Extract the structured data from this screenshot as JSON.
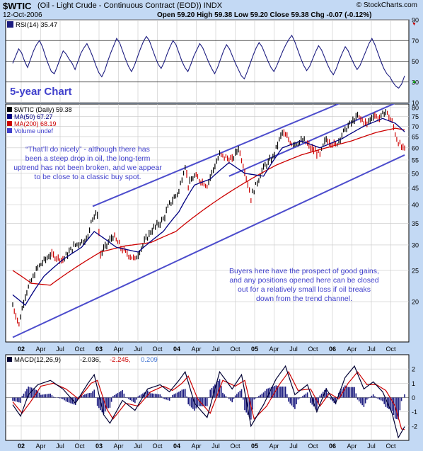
{
  "header": {
    "symbol": "$WTIC",
    "description": "(Oil - Light Crude - Continuous Contract (EOD)) INDX",
    "date": "12-Oct-2006",
    "ohlc": "Open 59.20  High 59.38  Low 59.20  Close 59.38  Chg -0.07 (-0.12%)",
    "source": "© StockCharts.com"
  },
  "colors": {
    "background": "#c3d9f4",
    "panel": "#ffffff",
    "price": "#000000",
    "up_bar": "#000000",
    "down_bar": "#cc0000",
    "ma50": "#000080",
    "ma200": "#cc0000",
    "channel": "#4c4ccc",
    "rsi": "#1c1c80",
    "macd_line": "#000033",
    "macd_signal": "#cc0000",
    "macd_hist": "#1c1c80",
    "annotation": "#4040cc"
  },
  "chart_data": [
    {
      "type": "line",
      "panel": "rsi",
      "legend": "RSI(14) 35.47",
      "ylim": [
        10,
        90
      ],
      "yticks": [
        10,
        30,
        50,
        70,
        90
      ],
      "reference_lines": [
        30,
        50,
        70
      ],
      "grid": true,
      "values": [
        48,
        55,
        62,
        58,
        50,
        44,
        52,
        60,
        66,
        70,
        64,
        55,
        47,
        40,
        38,
        45,
        53,
        60,
        57,
        52,
        48,
        42,
        50,
        58,
        63,
        67,
        61,
        54,
        46,
        39,
        35,
        41,
        50,
        58,
        65,
        72,
        68,
        60,
        52,
        45,
        40,
        46,
        54,
        62,
        69,
        74,
        70,
        62,
        54,
        47,
        43,
        49,
        57,
        64,
        70,
        66,
        58,
        50,
        44,
        40,
        47,
        55,
        61,
        67,
        63,
        56,
        49,
        43,
        38,
        44,
        52,
        60,
        66,
        62,
        55,
        48,
        42,
        36,
        33,
        40,
        48,
        56,
        63,
        68,
        64,
        57,
        50,
        44,
        40,
        46,
        53,
        60,
        66,
        71,
        75,
        69,
        61,
        53,
        46,
        41,
        45,
        52,
        59,
        65,
        61,
        54,
        47,
        41,
        37,
        43,
        51,
        58,
        64,
        60,
        53,
        47,
        42,
        46,
        53,
        60,
        67,
        72,
        66,
        58,
        50,
        43,
        38,
        35,
        30,
        26,
        24,
        28,
        36
      ]
    },
    {
      "type": "line",
      "panel": "price",
      "legend": [
        "$WTIC (Daily) 59.38",
        "MA(50) 67.27",
        "MA(200) 68.19",
        "Volume undef"
      ],
      "scale": "log",
      "ylim": [
        15,
        82
      ],
      "yticks": [
        20,
        25,
        30,
        35,
        40,
        45,
        50,
        55,
        60,
        65,
        70,
        75,
        80
      ],
      "grid": true,
      "x_labels": [
        "02",
        "Apr",
        "Jul",
        "Oct",
        "03",
        "Apr",
        "Jul",
        "Oct",
        "04",
        "Apr",
        "Jul",
        "Oct",
        "05",
        "Apr",
        "Jul",
        "Oct",
        "06",
        "Apr",
        "Jul",
        "Oct"
      ],
      "x_label_bold": [
        "02",
        "03",
        "04",
        "05",
        "06"
      ],
      "price_anchors": [
        [
          0,
          19.5
        ],
        [
          4,
          17
        ],
        [
          8,
          21
        ],
        [
          16,
          25.5
        ],
        [
          24,
          28
        ],
        [
          32,
          27
        ],
        [
          40,
          30
        ],
        [
          48,
          31.5
        ],
        [
          50,
          36
        ],
        [
          54,
          37.5
        ],
        [
          56,
          28
        ],
        [
          60,
          30
        ],
        [
          64,
          32
        ],
        [
          70,
          29
        ],
        [
          78,
          27
        ],
        [
          88,
          33
        ],
        [
          96,
          36
        ],
        [
          100,
          40
        ],
        [
          106,
          44
        ],
        [
          110,
          53
        ],
        [
          112,
          46
        ],
        [
          116,
          49
        ],
        [
          124,
          46
        ],
        [
          132,
          57
        ],
        [
          140,
          55
        ],
        [
          144,
          60
        ],
        [
          152,
          42
        ],
        [
          160,
          52
        ],
        [
          166,
          56
        ],
        [
          172,
          67
        ],
        [
          178,
          62
        ],
        [
          186,
          63
        ],
        [
          190,
          60
        ],
        [
          196,
          57
        ],
        [
          200,
          64
        ],
        [
          206,
          61
        ],
        [
          210,
          66
        ],
        [
          214,
          70
        ],
        [
          220,
          75
        ],
        [
          226,
          71
        ],
        [
          230,
          76
        ],
        [
          234,
          74
        ],
        [
          238,
          78
        ],
        [
          242,
          72
        ],
        [
          245,
          64
        ],
        [
          248,
          60
        ],
        [
          250,
          59.4
        ]
      ],
      "ma50_anchors": [
        [
          0,
          21
        ],
        [
          8,
          19.5
        ],
        [
          20,
          24
        ],
        [
          32,
          27
        ],
        [
          44,
          29.5
        ],
        [
          52,
          33
        ],
        [
          58,
          31.5
        ],
        [
          66,
          29.5
        ],
        [
          80,
          28.5
        ],
        [
          96,
          33
        ],
        [
          106,
          38
        ],
        [
          116,
          46
        ],
        [
          126,
          48
        ],
        [
          138,
          54
        ],
        [
          148,
          50
        ],
        [
          160,
          49
        ],
        [
          172,
          60
        ],
        [
          184,
          63
        ],
        [
          196,
          60
        ],
        [
          210,
          64
        ],
        [
          224,
          70
        ],
        [
          236,
          74
        ],
        [
          244,
          71.5
        ],
        [
          250,
          67.3
        ]
      ],
      "ma200_anchors": [
        [
          0,
          25
        ],
        [
          12,
          22.8
        ],
        [
          24,
          22.5
        ],
        [
          40,
          25.5
        ],
        [
          56,
          28.5
        ],
        [
          72,
          29.8
        ],
        [
          88,
          30.5
        ],
        [
          104,
          33
        ],
        [
          120,
          38
        ],
        [
          136,
          43
        ],
        [
          152,
          48
        ],
        [
          168,
          53
        ],
        [
          184,
          57
        ],
        [
          200,
          60
        ],
        [
          216,
          63
        ],
        [
          232,
          67
        ],
        [
          244,
          69
        ],
        [
          250,
          68.2
        ]
      ],
      "channel_lines": [
        {
          "name": "upper",
          "from": [
            51,
            39.5
          ],
          "to": [
            250,
            100
          ]
        },
        {
          "name": "middle",
          "from": [
            138,
            49
          ],
          "to": [
            250,
            85
          ]
        },
        {
          "name": "lower",
          "from": [
            0,
            15.5
          ],
          "to": [
            250,
            57
          ]
        }
      ],
      "annotations": [
        {
          "text": "5-year Chart"
        },
        {
          "text": "“That’ll do nicely” - although there has been a steep drop in oil, the long-term uptrend has not been broken, and we appear to be close to a classic buy spot."
        },
        {
          "text": "Buyers here have the prospect of good gains, and any positions opened here can be closed out for a relatively small loss if oil breaks down from the trend channel."
        }
      ]
    },
    {
      "type": "line",
      "panel": "macd",
      "legend": [
        "MACD(12,26,9)",
        "-2.036",
        "-2.245",
        "0.209"
      ],
      "ylim": [
        -3,
        3
      ],
      "yticks": [
        -2,
        -1,
        0,
        1,
        2
      ],
      "grid": true,
      "x_labels": [
        "02",
        "Apr",
        "Jul",
        "Oct",
        "03",
        "Apr",
        "Jul",
        "Oct",
        "04",
        "Apr",
        "Jul",
        "Oct",
        "05",
        "Apr",
        "Jul",
        "Oct",
        "06",
        "Apr",
        "Jul",
        "Oct"
      ],
      "macd_anchors": [
        [
          0,
          -0.5
        ],
        [
          5,
          -1.3
        ],
        [
          10,
          0.2
        ],
        [
          16,
          0.9
        ],
        [
          24,
          1.2
        ],
        [
          32,
          0.6
        ],
        [
          40,
          -0.4
        ],
        [
          48,
          1.0
        ],
        [
          52,
          1.6
        ],
        [
          58,
          -1.2
        ],
        [
          62,
          -1.8
        ],
        [
          70,
          -0.2
        ],
        [
          78,
          -0.9
        ],
        [
          86,
          0.6
        ],
        [
          94,
          0.9
        ],
        [
          100,
          0.4
        ],
        [
          106,
          1.2
        ],
        [
          110,
          1.8
        ],
        [
          116,
          -0.4
        ],
        [
          124,
          -1.4
        ],
        [
          132,
          1.8
        ],
        [
          140,
          0.6
        ],
        [
          146,
          1.6
        ],
        [
          152,
          -2.0
        ],
        [
          160,
          -0.5
        ],
        [
          168,
          1.3
        ],
        [
          174,
          2.2
        ],
        [
          180,
          0.2
        ],
        [
          188,
          0.9
        ],
        [
          194,
          -1.0
        ],
        [
          200,
          0.6
        ],
        [
          206,
          -0.4
        ],
        [
          212,
          1.4
        ],
        [
          218,
          2.2
        ],
        [
          224,
          0.6
        ],
        [
          230,
          1.1
        ],
        [
          236,
          0.4
        ],
        [
          242,
          -1.1
        ],
        [
          246,
          -2.8
        ],
        [
          250,
          -2.04
        ]
      ],
      "signal_anchors": [
        [
          0,
          -0.3
        ],
        [
          6,
          -1.1
        ],
        [
          12,
          -0.2
        ],
        [
          18,
          0.8
        ],
        [
          26,
          1.0
        ],
        [
          34,
          0.6
        ],
        [
          42,
          -0.1
        ],
        [
          50,
          1.0
        ],
        [
          54,
          1.2
        ],
        [
          60,
          -0.8
        ],
        [
          64,
          -1.5
        ],
        [
          72,
          -0.4
        ],
        [
          80,
          -0.6
        ],
        [
          88,
          0.4
        ],
        [
          96,
          0.8
        ],
        [
          102,
          0.5
        ],
        [
          108,
          1.0
        ],
        [
          112,
          1.5
        ],
        [
          118,
          -0.1
        ],
        [
          126,
          -1.1
        ],
        [
          134,
          1.2
        ],
        [
          142,
          0.8
        ],
        [
          148,
          1.2
        ],
        [
          154,
          -1.5
        ],
        [
          162,
          -0.6
        ],
        [
          170,
          0.9
        ],
        [
          176,
          1.8
        ],
        [
          182,
          0.5
        ],
        [
          190,
          0.6
        ],
        [
          196,
          -0.6
        ],
        [
          202,
          0.3
        ],
        [
          208,
          -0.1
        ],
        [
          214,
          1.0
        ],
        [
          220,
          1.8
        ],
        [
          226,
          0.9
        ],
        [
          232,
          0.9
        ],
        [
          238,
          0.5
        ],
        [
          244,
          -0.6
        ],
        [
          248,
          -2.2
        ],
        [
          250,
          -2.245
        ]
      ]
    }
  ]
}
